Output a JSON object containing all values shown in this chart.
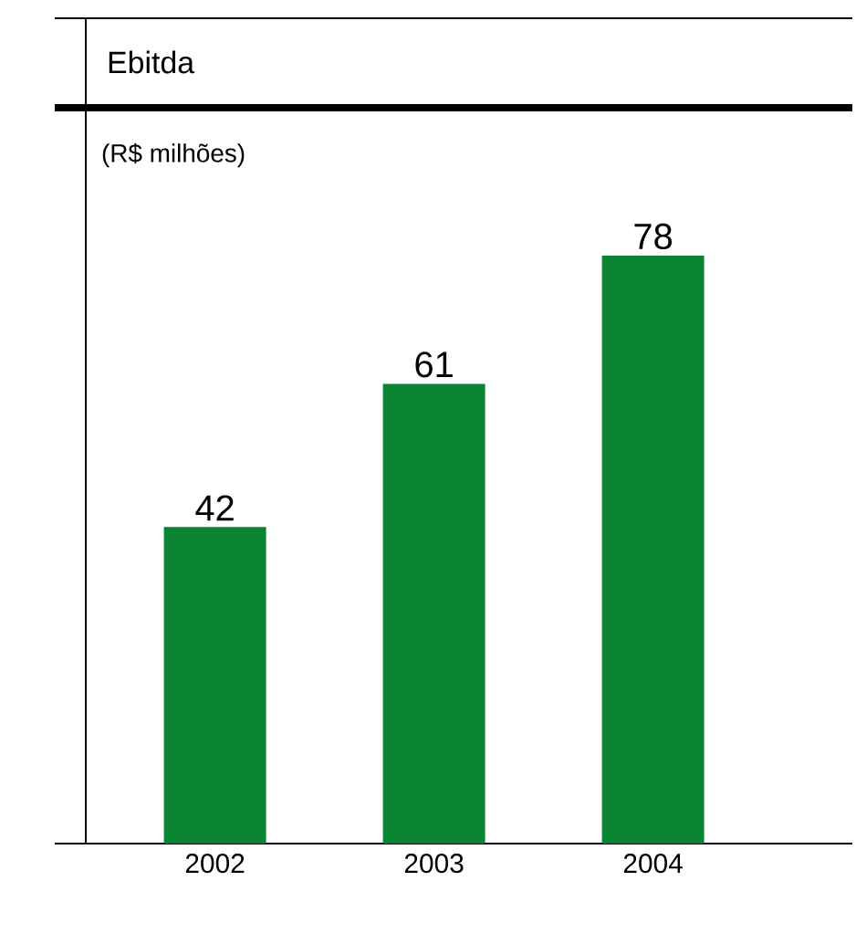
{
  "chart_data": {
    "type": "bar",
    "title": "Ebitda",
    "subtitle": "(R$ milhões)",
    "categories": [
      "2002",
      "2003",
      "2004"
    ],
    "values": [
      42,
      61,
      78
    ],
    "color": "#0a8432",
    "data_labels": true,
    "tick_labels": "x"
  }
}
